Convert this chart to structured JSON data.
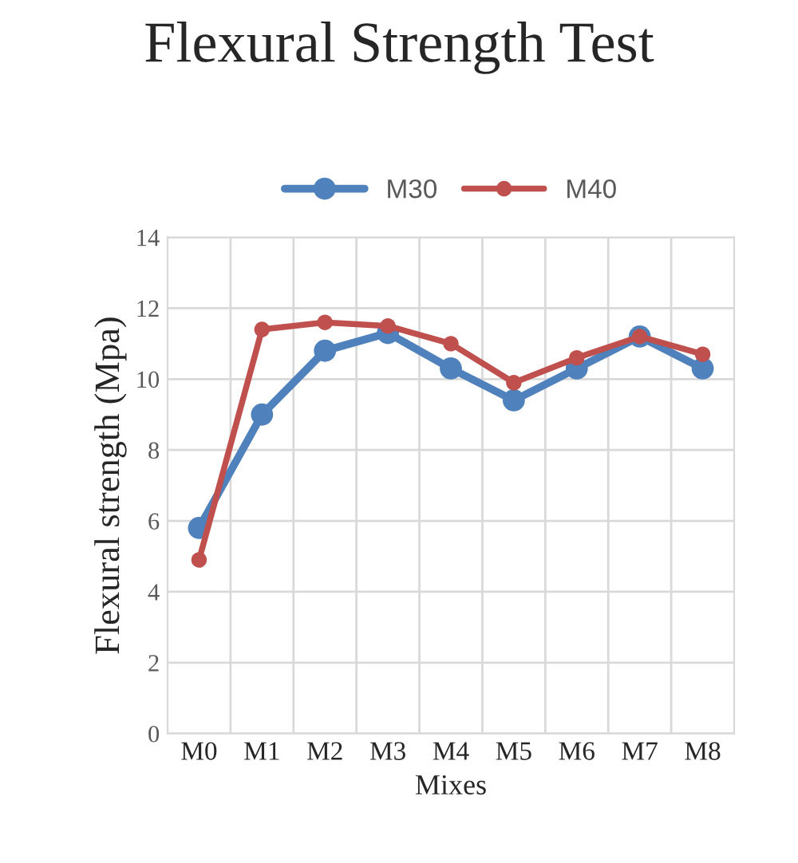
{
  "chart_data": {
    "type": "line",
    "title": "Flexural Strength Test",
    "xlabel": "Mixes",
    "ylabel": "Flexural strength (Mpa)",
    "categories": [
      "M0",
      "M1",
      "M2",
      "M3",
      "M4",
      "M5",
      "M6",
      "M7",
      "M8"
    ],
    "series": [
      {
        "name": "M30",
        "color": "#4f81bd",
        "values": [
          5.8,
          9.0,
          10.8,
          11.3,
          10.3,
          9.4,
          10.3,
          11.2,
          10.3
        ]
      },
      {
        "name": "M40",
        "color": "#c0504d",
        "values": [
          4.9,
          11.4,
          11.6,
          11.5,
          11.0,
          9.9,
          10.6,
          11.2,
          10.7
        ]
      }
    ],
    "ylim": [
      0,
      14
    ],
    "yticks": [
      0,
      2,
      4,
      6,
      8,
      10,
      12,
      14
    ],
    "grid": true,
    "legend": "top",
    "marker": "circle",
    "line_style": "solid"
  }
}
